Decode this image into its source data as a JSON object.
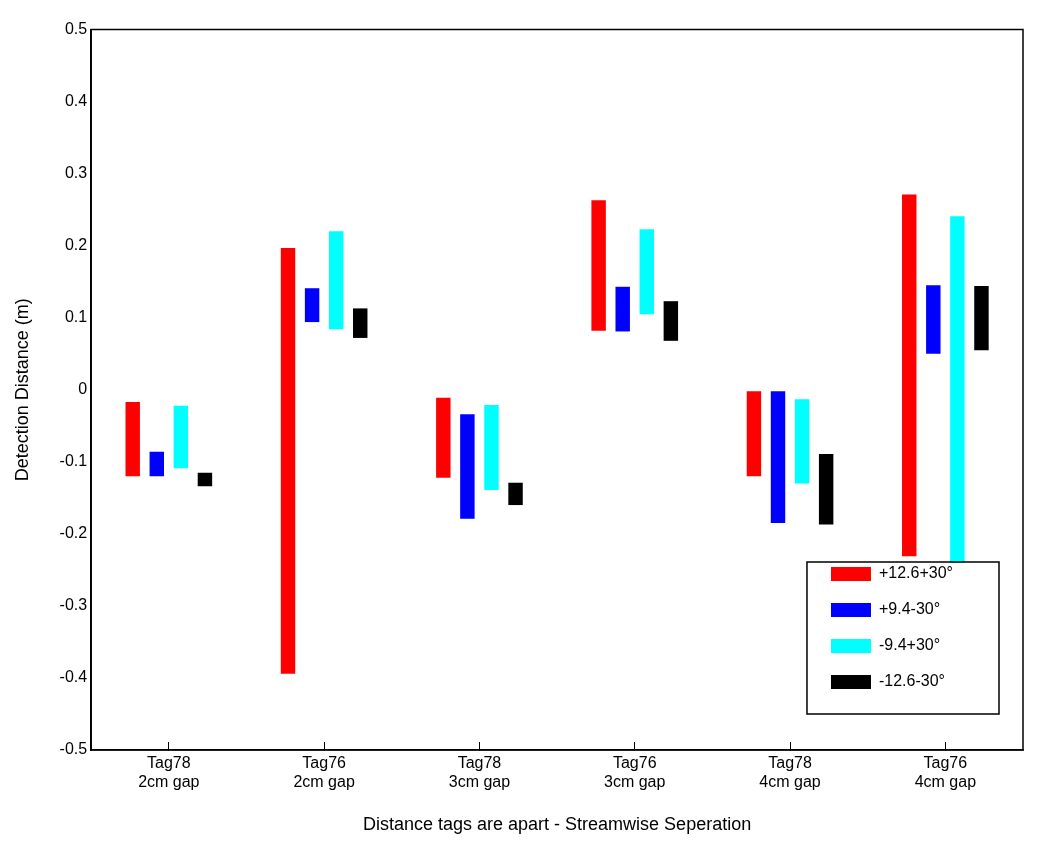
{
  "chart_data": {
    "type": "bar",
    "xlabel": "Distance tags are apart - Streamwise Seperation",
    "ylabel": "Detection Distance (m)",
    "categories": [
      "Tag78\n2cm gap",
      "Tag76\n2cm gap",
      "Tag78\n3cm gap",
      "Tag76\n3cm gap",
      "Tag78\n4cm gap",
      "Tag76\n4cm gap"
    ],
    "series": [
      {
        "name": "+12.6+30°",
        "color": "#ff0000",
        "base": [
          -0.12,
          -0.394,
          -0.122,
          0.082,
          -0.12,
          -0.231
        ],
        "values": [
          0.103,
          0.591,
          0.111,
          0.181,
          0.118,
          0.502
        ]
      },
      {
        "name": "+9.4-30°",
        "color": "#0000ff",
        "base": [
          -0.12,
          0.094,
          -0.179,
          0.081,
          -0.185,
          0.05
        ],
        "values": [
          0.034,
          0.047,
          0.145,
          0.062,
          0.183,
          0.095
        ]
      },
      {
        "name": "-9.4+30°",
        "color": "#00ffff",
        "base": [
          -0.109,
          0.084,
          -0.139,
          0.105,
          -0.13,
          -0.24
        ],
        "values": [
          0.087,
          0.136,
          0.118,
          0.118,
          0.117,
          0.481
        ]
      },
      {
        "name": "-12.6-30°",
        "color": "#000000",
        "base": [
          -0.134,
          0.072,
          -0.16,
          0.068,
          -0.187,
          0.055
        ],
        "values": [
          0.019,
          0.041,
          0.031,
          0.055,
          0.098,
          0.089
        ]
      }
    ],
    "ylim": [
      -0.5,
      0.5
    ],
    "yticks": [
      -0.5,
      -0.4,
      -0.3,
      -0.2,
      -0.1,
      0,
      0.1,
      0.2,
      0.3,
      0.4,
      0.5
    ],
    "grid": false,
    "legend": "bottom right"
  }
}
